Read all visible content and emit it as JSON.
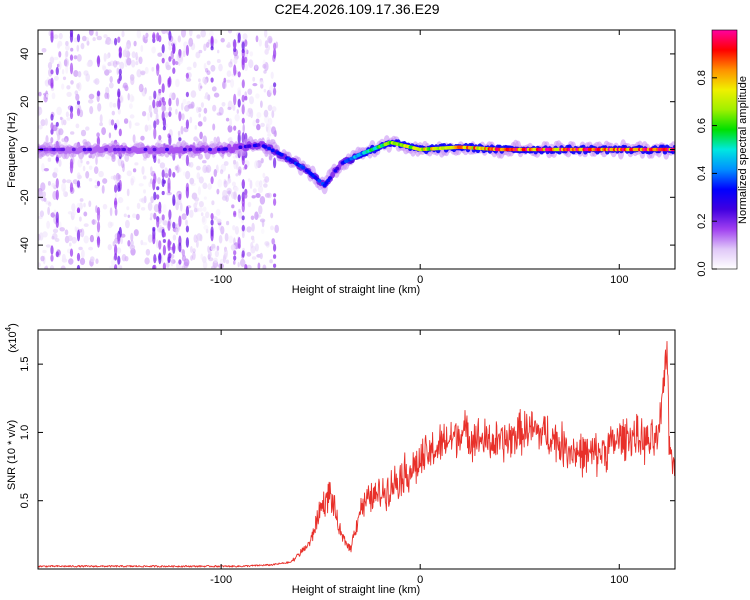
{
  "figure_title": "C2E4.2026.109.17.36.E29",
  "chart_data": [
    {
      "type": "heatmap",
      "title": "",
      "xlabel": "Height of straight line (km)",
      "ylabel": "Frequency (Hz)",
      "xlim": [
        -192,
        128
      ],
      "ylim": [
        -50,
        50
      ],
      "xticks": [
        -100,
        0,
        100
      ],
      "yticks": [
        -40,
        -20,
        0,
        20,
        40
      ],
      "xtick_labels": [
        "-100",
        "0",
        "100"
      ],
      "ytick_labels": [
        "-40",
        "-20",
        "0",
        "20",
        "40"
      ],
      "colorbar": {
        "label": "Normalized spectral amplitude",
        "range": [
          0,
          1
        ],
        "ticks": [
          0.0,
          0.2,
          0.4,
          0.6,
          0.8
        ],
        "tick_labels": [
          "0.0",
          "0.2",
          "0.4",
          "0.6",
          "0.8"
        ],
        "colormap": [
          "#ffffff",
          "#e0c8f8",
          "#a040f0",
          "#4000e0",
          "#0000ff",
          "#0090ff",
          "#00e8e0",
          "#00e000",
          "#a0f000",
          "#f0f000",
          "#ff9000",
          "#ff0000",
          "#ff00a0"
        ]
      },
      "noise_region": {
        "x_from": -192,
        "x_to": -72,
        "amplitude": 0.06
      },
      "ridge": [
        {
          "x": -192,
          "y": 0,
          "amp": 0.22
        },
        {
          "x": -150,
          "y": 0,
          "amp": 0.25
        },
        {
          "x": -100,
          "y": 0,
          "amp": 0.27
        },
        {
          "x": -80,
          "y": 2,
          "amp": 0.3
        },
        {
          "x": -70,
          "y": -2,
          "amp": 0.35
        },
        {
          "x": -58,
          "y": -8,
          "amp": 0.35
        },
        {
          "x": -48,
          "y": -15,
          "amp": 0.35
        },
        {
          "x": -40,
          "y": -6,
          "amp": 0.3
        },
        {
          "x": -30,
          "y": -2,
          "amp": 0.5
        },
        {
          "x": -15,
          "y": 3,
          "amp": 0.7
        },
        {
          "x": 0,
          "y": 0,
          "amp": 0.75
        },
        {
          "x": 20,
          "y": 1,
          "amp": 0.8
        },
        {
          "x": 40,
          "y": 0,
          "amp": 0.9
        },
        {
          "x": 80,
          "y": 0,
          "amp": 0.95
        },
        {
          "x": 128,
          "y": 0,
          "amp": 0.95
        }
      ]
    },
    {
      "type": "line",
      "title": "",
      "xlabel": "Height of straight line (km)",
      "ylabel": "SNR (10 * v/v)",
      "scale_label": "(x10",
      "scale_exponent": "4",
      "xlim": [
        -192,
        128
      ],
      "ylim": [
        0,
        1.75
      ],
      "xticks": [
        -100,
        0,
        100
      ],
      "yticks": [
        0.5,
        1.0,
        1.5
      ],
      "xtick_labels": [
        "-100",
        "0",
        "100"
      ],
      "ytick_labels": [
        "0.5",
        "1.0",
        "1.5"
      ],
      "series": [
        {
          "name": "SNR",
          "color": "#e8302a",
          "x": [
            -192,
            -170,
            -150,
            -130,
            -110,
            -90,
            -75,
            -65,
            -60,
            -55,
            -50,
            -45,
            -40,
            -35,
            -30,
            -25,
            -20,
            -15,
            -10,
            -5,
            0,
            5,
            10,
            15,
            20,
            25,
            30,
            35,
            40,
            45,
            50,
            55,
            60,
            65,
            70,
            75,
            80,
            85,
            90,
            95,
            100,
            105,
            110,
            115,
            120,
            124,
            125,
            126,
            128
          ],
          "y": [
            0.02,
            0.02,
            0.02,
            0.02,
            0.02,
            0.02,
            0.03,
            0.05,
            0.12,
            0.2,
            0.45,
            0.55,
            0.25,
            0.15,
            0.45,
            0.52,
            0.55,
            0.6,
            0.68,
            0.72,
            0.78,
            0.85,
            0.9,
            0.95,
            1.0,
            0.98,
            0.95,
            0.93,
            0.92,
            0.95,
            1.0,
            1.02,
            1.0,
            0.98,
            0.92,
            0.88,
            0.85,
            0.83,
            0.85,
            0.9,
            0.95,
            0.98,
            0.95,
            0.92,
            0.95,
            1.7,
            0.9,
            0.85,
            0.85
          ],
          "noise": 0.12
        }
      ]
    }
  ]
}
